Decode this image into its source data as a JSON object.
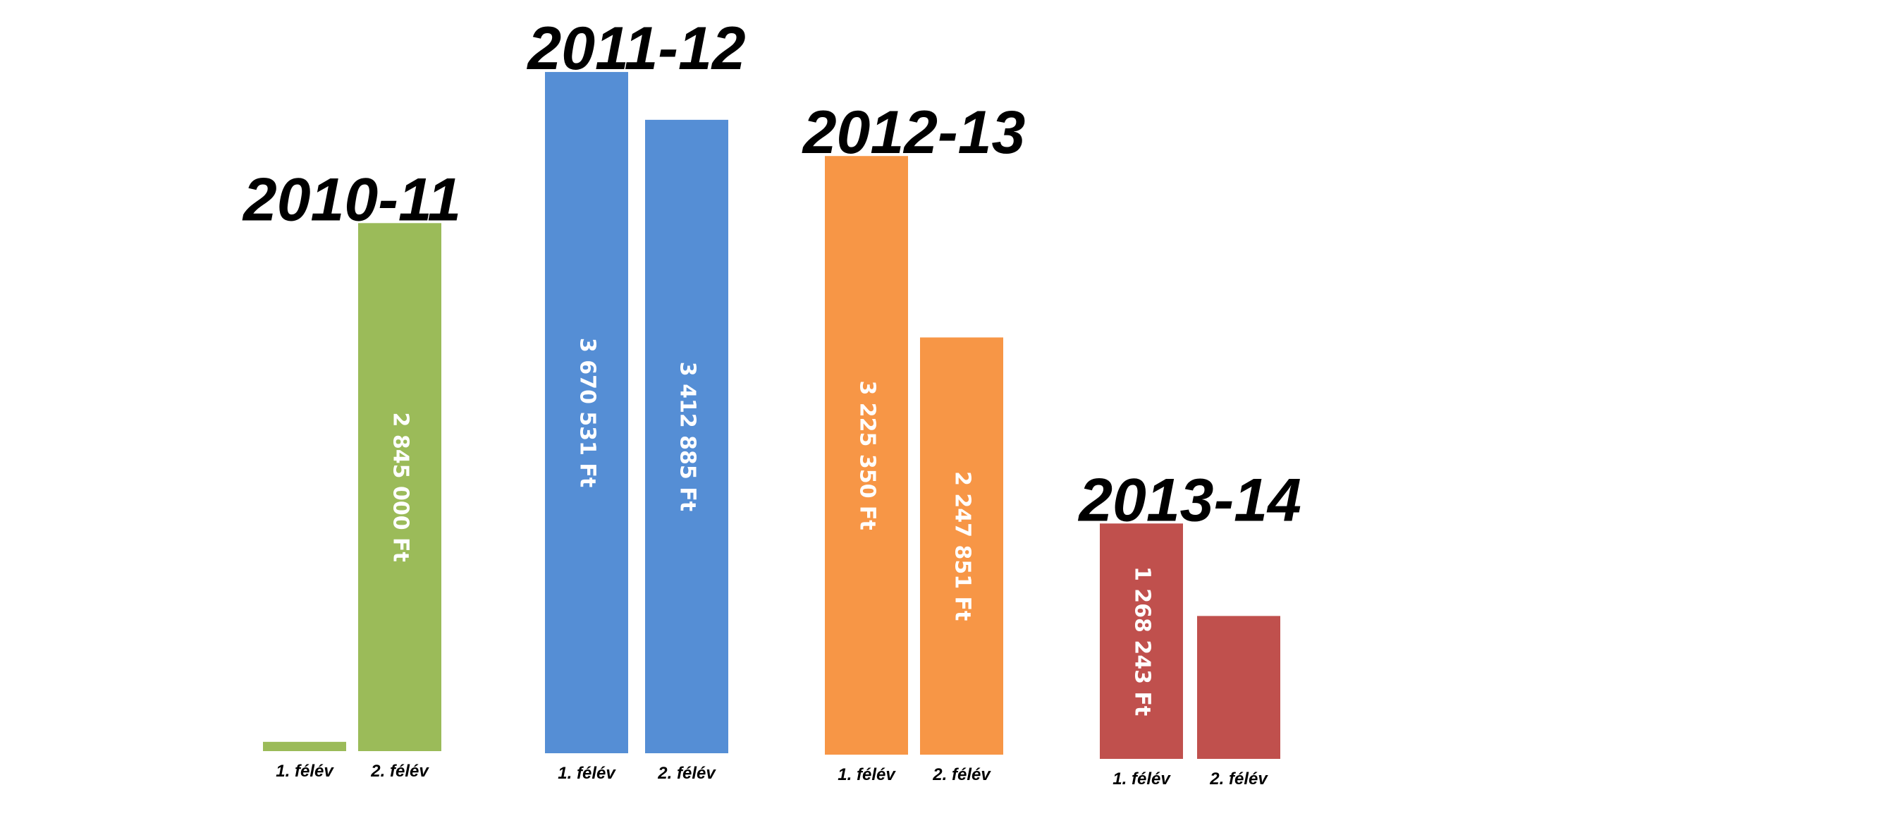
{
  "chart_data": {
    "type": "bar",
    "title": "",
    "xlabel": "",
    "ylabel": "",
    "ylim": [
      0,
      3800000
    ],
    "grid": false,
    "legend": "none",
    "groups": [
      {
        "label": "2010-11",
        "color": "#9bbb59",
        "bars": [
          {
            "category": "1. félév",
            "value": 50000,
            "label": ""
          },
          {
            "category": "2. félév",
            "value": 2845000,
            "label": "2 845 000 Ft"
          }
        ]
      },
      {
        "label": "2011-12",
        "color": "#558ed5",
        "bars": [
          {
            "category": "1. félév",
            "value": 3670531,
            "label": "3 670 531 Ft"
          },
          {
            "category": "2. félév",
            "value": 3412885,
            "label": "3 412 885 Ft"
          }
        ]
      },
      {
        "label": "2012-13",
        "color": "#f79646",
        "bars": [
          {
            "category": "1. félév",
            "value": 3225350,
            "label": "3 225 350 Ft"
          },
          {
            "category": "2. félév",
            "value": 2247851,
            "label": "2 247 851 Ft"
          }
        ]
      },
      {
        "label": "2013-14",
        "color": "#c0504d",
        "bars": [
          {
            "category": "1. félév",
            "value": 1268243,
            "label": "1 268 243 Ft"
          },
          {
            "category": "2. félév",
            "value": 770000,
            "label": ""
          }
        ]
      }
    ]
  }
}
